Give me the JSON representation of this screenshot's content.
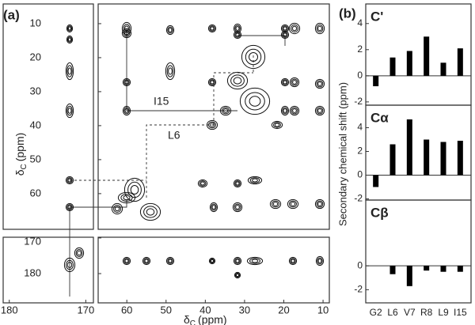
{
  "panel_a": {
    "label": "(a)",
    "axis_label": {
      "symbol": "δ",
      "sub": "C",
      "unit": "(ppm)"
    },
    "x_main_ticks": [
      60,
      50,
      40,
      30,
      20,
      10
    ],
    "x_main_lim": [
      67.3,
      8.4
    ],
    "x_strip_ticks": [
      180,
      170
    ],
    "x_strip_lim": [
      180.8,
      169
    ],
    "y_main_ticks": [
      10,
      20,
      30,
      40,
      50,
      60
    ],
    "y_main_lim": [
      4.2,
      70.5
    ],
    "y_lower_ticks": [
      170,
      180
    ],
    "y_lower_lim": [
      169.8,
      188.2
    ],
    "annotations": [
      "I15",
      "L6"
    ]
  },
  "panel_b": {
    "label": "(b)",
    "ylabel": "Secondary chemical shift (ppm)",
    "categories": [
      "G2",
      "L6",
      "V7",
      "R8",
      "L9",
      "I15"
    ]
  },
  "chart_data": [
    {
      "type": "bar",
      "title": "C'",
      "values": [
        -0.8,
        1.4,
        1.9,
        3.0,
        1.0,
        2.1
      ],
      "color": "#000000",
      "ylim": [
        -2.25,
        5.5
      ],
      "yticks": [
        -2,
        0,
        2,
        4
      ]
    },
    {
      "type": "bar",
      "title": "Cα",
      "values": [
        -1.0,
        2.6,
        4.7,
        3.0,
        2.8,
        2.9
      ],
      "color": "#000000",
      "ylim": [
        -2.1,
        5.9
      ],
      "yticks": [
        -2,
        0,
        2,
        4
      ]
    },
    {
      "type": "bar",
      "title": "Cβ",
      "values": [
        null,
        -0.7,
        -1.7,
        -0.4,
        -0.5,
        -0.5
      ],
      "color": "#000000",
      "ylim": [
        -3.1,
        5.5
      ],
      "yticks": [
        -2,
        0
      ]
    }
  ]
}
